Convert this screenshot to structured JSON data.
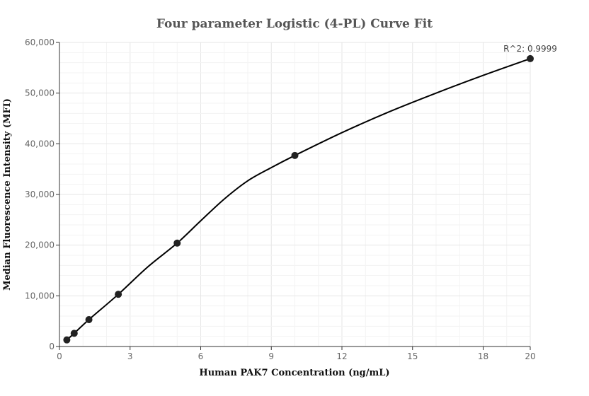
{
  "chart_data": {
    "type": "scatter",
    "title": "Four parameter Logistic (4-PL) Curve Fit",
    "xlabel": "Human PAK7 Concentration (ng/mL)",
    "ylabel": "Median Fluorescence Intensity (MFI)",
    "xlim": [
      0,
      20
    ],
    "ylim": [
      0,
      60000
    ],
    "x_ticks": [
      0,
      3,
      6,
      9,
      12,
      15,
      18,
      20
    ],
    "y_ticks": [
      0,
      10000,
      20000,
      30000,
      40000,
      50000,
      60000
    ],
    "y_tick_labels": [
      "0",
      "10,000",
      "20,000",
      "30,000",
      "40,000",
      "50,000",
      "60,000"
    ],
    "grid": true,
    "points": {
      "x": [
        0.3125,
        0.625,
        1.25,
        2.5,
        5,
        10,
        20
      ],
      "y": [
        1300,
        2600,
        5300,
        10300,
        20400,
        37700,
        56800
      ]
    },
    "fit_curve": {
      "x": [
        0.3125,
        0.625,
        1.25,
        2.5,
        3.75,
        5,
        6,
        7,
        8,
        9,
        10,
        12,
        14,
        16,
        18,
        20
      ],
      "y": [
        1300,
        2600,
        5300,
        10300,
        15700,
        20400,
        24800,
        29100,
        32700,
        35300,
        37700,
        42200,
        46300,
        50000,
        53500,
        56800
      ]
    },
    "annotation": "R^2: 0.9999",
    "colors": {
      "points": "#222222",
      "curve": "#000000",
      "grid": "#e6e6e6",
      "axis": "#333333"
    }
  }
}
